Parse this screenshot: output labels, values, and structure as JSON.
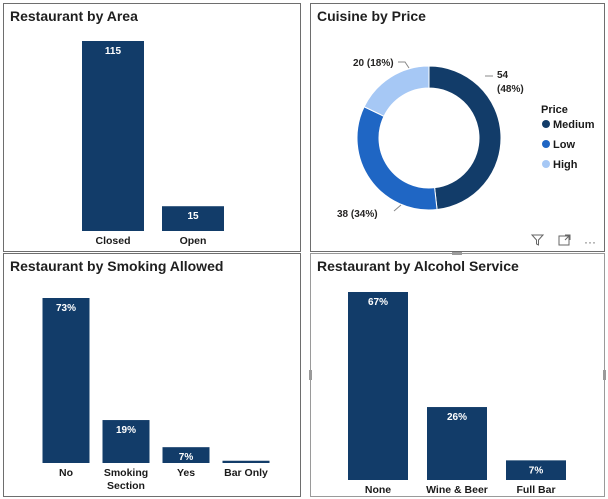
{
  "chart_data": [
    {
      "type": "bar",
      "title": "Restaurant by Area",
      "categories": [
        "Closed",
        "Open"
      ],
      "values": [
        115,
        15
      ],
      "value_labels": [
        "115",
        "15"
      ]
    },
    {
      "type": "pie",
      "title": "Cuisine by Price",
      "legend_title": "Price",
      "legend_position": "right",
      "categories": [
        "Medium",
        "Low",
        "High"
      ],
      "values": [
        54,
        38,
        20
      ],
      "percent_labels": [
        "(48%)",
        "(34%)",
        "(18%)"
      ],
      "colors": [
        "#123c69",
        "#1f66c4",
        "#a6c8f5"
      ]
    },
    {
      "type": "bar",
      "title": "Restaurant by Smoking Allowed",
      "categories": [
        "No",
        "Smoking Section",
        "Yes",
        "Bar Only"
      ],
      "category_lines": [
        [
          "No"
        ],
        [
          "Smoking",
          "Section"
        ],
        [
          "Yes"
        ],
        [
          "Bar Only"
        ]
      ],
      "values": [
        73,
        19,
        7,
        1
      ],
      "value_labels": [
        "73%",
        "19%",
        "7%",
        ""
      ]
    },
    {
      "type": "bar",
      "title": "Restaurant by Alcohol Service",
      "categories": [
        "None",
        "Wine & Beer",
        "Full Bar"
      ],
      "values": [
        67,
        26,
        7
      ],
      "value_labels": [
        "67%",
        "26%",
        "7%"
      ]
    }
  ],
  "toolbar": {
    "filter_icon": "filter-icon",
    "focus_icon": "focus-mode-icon",
    "more_icon": "more-options-icon",
    "more_label": "···"
  }
}
